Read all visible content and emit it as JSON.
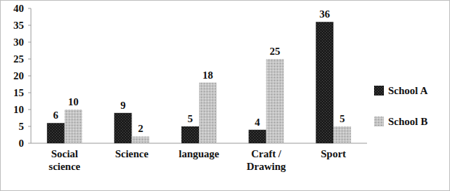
{
  "chart_data": {
    "type": "bar",
    "categories": [
      "Social science",
      "Science",
      "language",
      "Craft / Drawing",
      "Sport"
    ],
    "series": [
      {
        "name": "School A",
        "color": "#1c1c1c",
        "values": [
          6,
          9,
          5,
          4,
          36
        ]
      },
      {
        "name": "School B",
        "color": "#c4c4c4",
        "values": [
          10,
          2,
          18,
          25,
          5
        ]
      }
    ],
    "ylim": [
      0,
      40
    ],
    "yticks": [
      0,
      5,
      10,
      15,
      20,
      25,
      30,
      35,
      40
    ],
    "grid": false,
    "legend": "right",
    "data_labels": true
  }
}
